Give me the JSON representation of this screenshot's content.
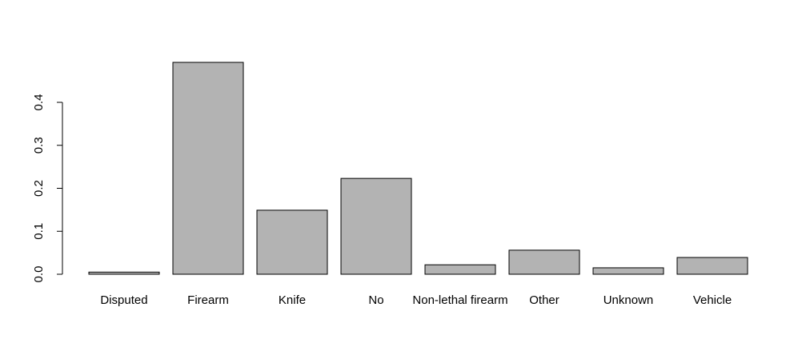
{
  "chart_data": {
    "type": "bar",
    "categories": [
      "Disputed",
      "Firearm",
      "Knife",
      "No",
      "Non-lethal firearm",
      "Other",
      "Unknown",
      "Vehicle"
    ],
    "values": [
      0.005,
      0.493,
      0.149,
      0.223,
      0.022,
      0.056,
      0.015,
      0.039
    ],
    "color": "#b3b3b3",
    "ylim": [
      0,
      0.5
    ],
    "yticks": [
      {
        "value": 0,
        "label": "0.0"
      },
      0.1,
      0.2,
      0.3,
      0.4
    ]
  }
}
